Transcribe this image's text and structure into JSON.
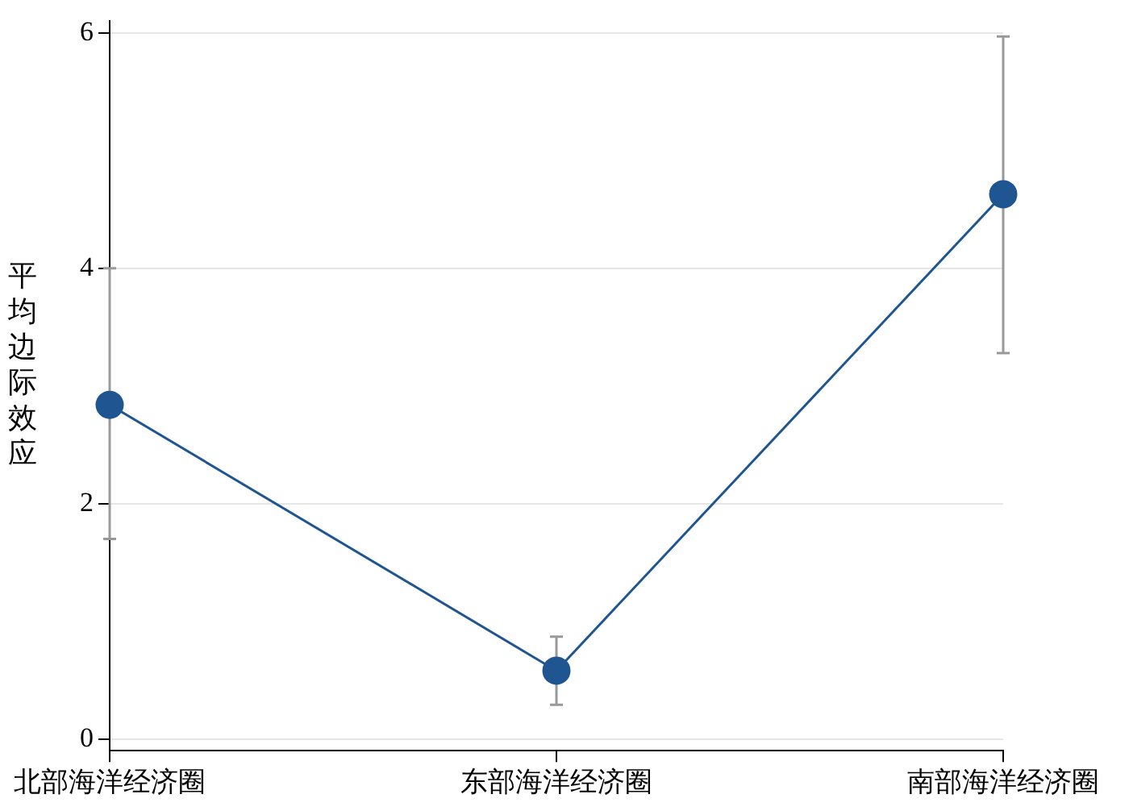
{
  "chart_data": {
    "type": "line",
    "ylabel": "平均边际效应",
    "categories": [
      "北部海洋经济圈",
      "东部海洋经济圈",
      "南部海洋经济圈"
    ],
    "series": [
      {
        "color": "#1f5591",
        "values": [
          2.84,
          0.58,
          4.63
        ],
        "errors": [
          [
            1.7,
            4.0
          ],
          [
            0.29,
            0.87
          ],
          [
            3.28,
            5.97
          ]
        ]
      }
    ],
    "ylim": [
      -0.1,
      6.1
    ],
    "yticks": [
      0,
      2,
      4,
      6
    ],
    "grid": "y",
    "legend": false,
    "marker": "circle",
    "line_style": "solid"
  }
}
